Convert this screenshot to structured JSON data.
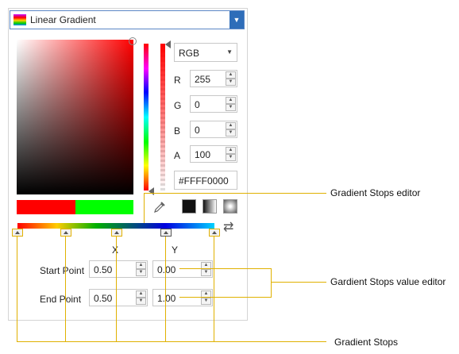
{
  "dropdown": {
    "label": "Linear Gradient",
    "arrow": "▼"
  },
  "color_model": {
    "selected": "RGB",
    "arrow": "▼"
  },
  "channels": [
    {
      "label": "R",
      "value": "255"
    },
    {
      "label": "G",
      "value": "0"
    },
    {
      "label": "B",
      "value": "0"
    },
    {
      "label": "A",
      "value": "100"
    }
  ],
  "hex": "#FFFF0000",
  "swatches": {
    "old_color": "#ff0000",
    "new_color": "#00ff00"
  },
  "gradient_points": {
    "x_header": "X",
    "y_header": "Y",
    "start": {
      "label": "Start Point",
      "x": "0.50",
      "y": "0.00"
    },
    "end": {
      "label": "End Point",
      "x": "0.50",
      "y": "1.00"
    }
  },
  "spin_up": "▲",
  "spin_down": "▼",
  "reverse_glyph": "⇄",
  "callouts": {
    "stops_editor": "Gradient Stops editor",
    "value_editor": "Gardient Stops value editor",
    "stops": "Gradient Stops"
  }
}
